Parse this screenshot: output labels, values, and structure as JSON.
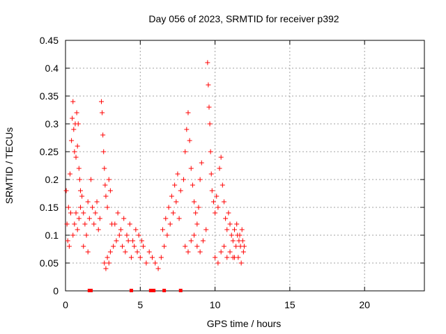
{
  "chart_data": {
    "type": "scatter",
    "title": "Day 056 of 2023, SRMTID for receiver p392",
    "xlabel": "GPS time / hours",
    "ylabel": "SRMTID / TECUs",
    "xlim": [
      0,
      24
    ],
    "ylim": [
      0,
      0.45
    ],
    "x_ticks": [
      0,
      5,
      10,
      15,
      20
    ],
    "x_tick_labels": [
      "0",
      "5",
      "10",
      "15",
      "20"
    ],
    "y_ticks": [
      0,
      0.05,
      0.1,
      0.15,
      0.2,
      0.25,
      0.3,
      0.35,
      0.4,
      0.45
    ],
    "y_tick_labels": [
      "0",
      "0.05",
      "0.1",
      "0.15",
      "0.2",
      "0.25",
      "0.3",
      "0.35",
      "0.4",
      "0.45"
    ],
    "grid": true,
    "marker": "+",
    "color": "#ff0000",
    "series": [
      {
        "name": "SRMTID",
        "points": [
          [
            0.05,
            0.18
          ],
          [
            0.1,
            0.12
          ],
          [
            0.15,
            0.09
          ],
          [
            0.2,
            0.15
          ],
          [
            0.25,
            0.08
          ],
          [
            0.3,
            0.21
          ],
          [
            0.35,
            0.14
          ],
          [
            0.4,
            0.27
          ],
          [
            0.45,
            0.31
          ],
          [
            0.5,
            0.34
          ],
          [
            0.55,
            0.29
          ],
          [
            0.6,
            0.25
          ],
          [
            0.65,
            0.3
          ],
          [
            0.7,
            0.24
          ],
          [
            0.75,
            0.32
          ],
          [
            0.8,
            0.26
          ],
          [
            0.85,
            0.3
          ],
          [
            0.9,
            0.22
          ],
          [
            0.95,
            0.2
          ],
          [
            1.0,
            0.18
          ],
          [
            0.5,
            0.1
          ],
          [
            0.6,
            0.12
          ],
          [
            0.7,
            0.14
          ],
          [
            0.8,
            0.11
          ],
          [
            0.9,
            0.13
          ],
          [
            1.0,
            0.15
          ],
          [
            1.1,
            0.17
          ],
          [
            1.2,
            0.14
          ],
          [
            1.3,
            0.12
          ],
          [
            1.4,
            0.1
          ],
          [
            1.5,
            0.16
          ],
          [
            1.6,
            0.13
          ],
          [
            1.7,
            0.2
          ],
          [
            1.8,
            0.15
          ],
          [
            1.9,
            0.12
          ],
          [
            2.0,
            0.14
          ],
          [
            2.1,
            0.16
          ],
          [
            2.2,
            0.11
          ],
          [
            2.3,
            0.13
          ],
          [
            2.4,
            0.34
          ],
          [
            2.45,
            0.32
          ],
          [
            2.5,
            0.28
          ],
          [
            2.55,
            0.25
          ],
          [
            2.6,
            0.22
          ],
          [
            2.65,
            0.19
          ],
          [
            2.7,
            0.17
          ],
          [
            2.8,
            0.15
          ],
          [
            2.9,
            0.2
          ],
          [
            3.0,
            0.18
          ],
          [
            3.1,
            0.12
          ],
          [
            1.2,
            0.08
          ],
          [
            1.5,
            0.07
          ],
          [
            2.6,
            0.05
          ],
          [
            2.7,
            0.04
          ],
          [
            2.8,
            0.06
          ],
          [
            2.9,
            0.05
          ],
          [
            3.0,
            0.07
          ],
          [
            3.2,
            0.08
          ],
          [
            3.4,
            0.09
          ],
          [
            3.6,
            0.1
          ],
          [
            3.8,
            0.08
          ],
          [
            4.0,
            0.07
          ],
          [
            4.2,
            0.09
          ],
          [
            4.4,
            0.06
          ],
          [
            4.6,
            0.08
          ],
          [
            4.8,
            0.07
          ],
          [
            5.0,
            0.06
          ],
          [
            5.2,
            0.08
          ],
          [
            5.4,
            0.05
          ],
          [
            5.6,
            0.07
          ],
          [
            3.3,
            0.12
          ],
          [
            3.5,
            0.14
          ],
          [
            3.7,
            0.11
          ],
          [
            3.9,
            0.13
          ],
          [
            4.1,
            0.1
          ],
          [
            4.3,
            0.12
          ],
          [
            4.5,
            0.09
          ],
          [
            4.7,
            0.11
          ],
          [
            4.9,
            0.1
          ],
          [
            5.1,
            0.09
          ],
          [
            5.8,
            0.06
          ],
          [
            6.0,
            0.05
          ],
          [
            6.2,
            0.04
          ],
          [
            6.4,
            0.06
          ],
          [
            6.6,
            0.08
          ],
          [
            6.8,
            0.1
          ],
          [
            7.0,
            0.12
          ],
          [
            7.2,
            0.14
          ],
          [
            7.4,
            0.16
          ],
          [
            7.6,
            0.13
          ],
          [
            6.5,
            0.11
          ],
          [
            6.7,
            0.13
          ],
          [
            6.9,
            0.15
          ],
          [
            7.1,
            0.17
          ],
          [
            7.3,
            0.19
          ],
          [
            7.5,
            0.21
          ],
          [
            7.7,
            0.18
          ],
          [
            7.9,
            0.2
          ],
          [
            8.0,
            0.25
          ],
          [
            8.1,
            0.29
          ],
          [
            8.2,
            0.32
          ],
          [
            8.3,
            0.27
          ],
          [
            8.4,
            0.22
          ],
          [
            8.5,
            0.19
          ],
          [
            8.6,
            0.16
          ],
          [
            8.7,
            0.14
          ],
          [
            8.8,
            0.12
          ],
          [
            8.9,
            0.15
          ],
          [
            9.0,
            0.2
          ],
          [
            9.1,
            0.23
          ],
          [
            8.0,
            0.08
          ],
          [
            8.2,
            0.07
          ],
          [
            8.4,
            0.09
          ],
          [
            8.6,
            0.1
          ],
          [
            8.8,
            0.08
          ],
          [
            9.0,
            0.07
          ],
          [
            9.2,
            0.09
          ],
          [
            9.4,
            0.11
          ],
          [
            9.5,
            0.41
          ],
          [
            9.55,
            0.37
          ],
          [
            9.6,
            0.33
          ],
          [
            9.65,
            0.3
          ],
          [
            9.7,
            0.25
          ],
          [
            9.75,
            0.21
          ],
          [
            9.8,
            0.18
          ],
          [
            9.9,
            0.16
          ],
          [
            10.0,
            0.14
          ],
          [
            10.1,
            0.17
          ],
          [
            10.2,
            0.15
          ],
          [
            10.3,
            0.22
          ],
          [
            10.4,
            0.24
          ],
          [
            10.5,
            0.19
          ],
          [
            10.6,
            0.16
          ],
          [
            10.7,
            0.13
          ],
          [
            10.8,
            0.11
          ],
          [
            10.9,
            0.14
          ],
          [
            11.0,
            0.12
          ],
          [
            11.1,
            0.1
          ],
          [
            11.2,
            0.09
          ],
          [
            11.3,
            0.11
          ],
          [
            10.0,
            0.06
          ],
          [
            10.2,
            0.05
          ],
          [
            10.4,
            0.07
          ],
          [
            10.6,
            0.08
          ],
          [
            10.8,
            0.06
          ],
          [
            11.0,
            0.07
          ],
          [
            11.2,
            0.06
          ],
          [
            11.4,
            0.08
          ],
          [
            11.5,
            0.1
          ],
          [
            11.6,
            0.09
          ],
          [
            11.7,
            0.08
          ],
          [
            11.8,
            0.11
          ],
          [
            11.9,
            0.07
          ],
          [
            11.45,
            0.12
          ],
          [
            11.55,
            0.06
          ],
          [
            11.65,
            0.1
          ],
          [
            11.75,
            0.05
          ],
          [
            11.85,
            0.09
          ],
          [
            11.95,
            0.08
          ],
          [
            11.3,
            0.06
          ]
        ]
      }
    ],
    "baseline_markers": [
      1.6,
      1.7,
      4.4,
      5.7,
      5.9,
      6.6,
      7.7
    ]
  }
}
